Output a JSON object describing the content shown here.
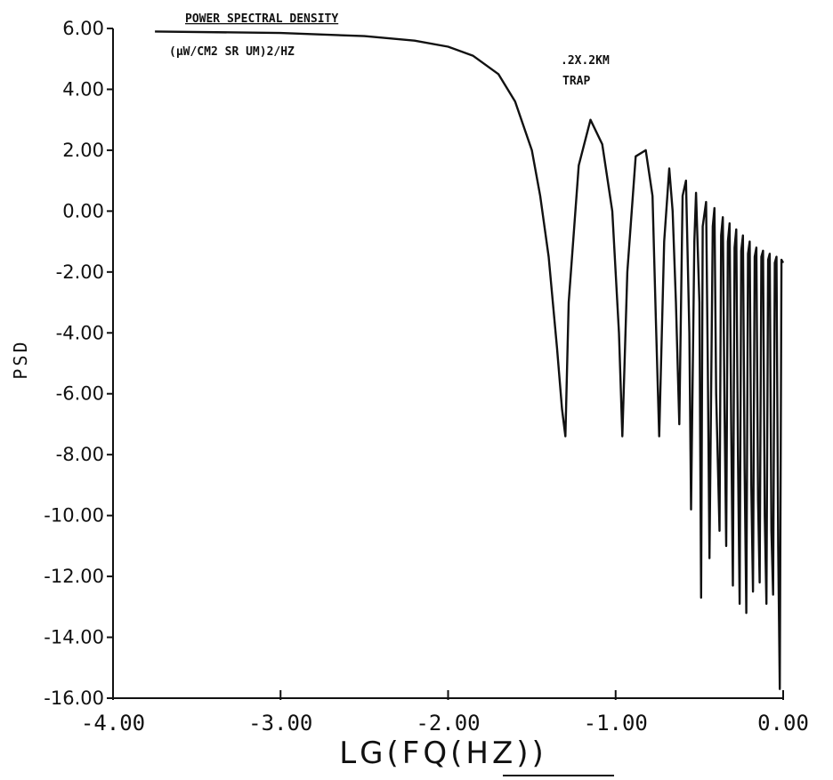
{
  "chart_data": {
    "type": "line",
    "title": "POWER SPECTRAL DENSITY",
    "subtitle": "(μW/CM2 SR UM)2/HZ",
    "annotation": ".2X.2KM TRAP",
    "xlabel": "LG(FQ(HZ))",
    "ylabel": "PSD",
    "xlim": [
      -4.0,
      0.0
    ],
    "ylim": [
      -16.0,
      6.0
    ],
    "x_ticks": [
      -4.0,
      -3.0,
      -2.0,
      -1.0,
      0.0
    ],
    "x_tick_labels": [
      "-4.00",
      "-3.00",
      "-2.00",
      "-1.00",
      "0.00"
    ],
    "y_ticks": [
      6.0,
      4.0,
      2.0,
      0.0,
      -2.0,
      -4.0,
      -6.0,
      -8.0,
      -10.0,
      -12.0,
      -14.0,
      -16.0
    ],
    "y_tick_labels": [
      "6.00",
      "4.00",
      "2.00",
      "0.00",
      "-2.00",
      "-4.00",
      "-6.00",
      "-8.00",
      "-10.00",
      "-12.00",
      "-14.00",
      "-16.00"
    ],
    "grid": false,
    "series": [
      {
        "x": [
          -3.75,
          -3.0,
          -2.5,
          -2.2,
          -2.0,
          -1.85,
          -1.7,
          -1.6,
          -1.5,
          -1.45,
          -1.4,
          -1.35,
          -1.32,
          -1.3,
          -1.28,
          -1.22,
          -1.15,
          -1.08,
          -1.02,
          -0.98,
          -0.96,
          -0.93,
          -0.88,
          -0.82,
          -0.78,
          -0.76,
          -0.74,
          -0.71,
          -0.68,
          -0.66,
          -0.64,
          -0.62,
          -0.6,
          -0.58,
          -0.56,
          -0.55,
          -0.53,
          -0.52,
          -0.5,
          -0.49,
          -0.48,
          -0.46,
          -0.45,
          -0.44,
          -0.42,
          -0.41,
          -0.4,
          -0.38,
          -0.37,
          -0.36,
          -0.35,
          -0.34,
          -0.33,
          -0.32,
          -0.31,
          -0.3,
          -0.29,
          -0.28,
          -0.27,
          -0.26,
          -0.25,
          -0.24,
          -0.23,
          -0.22,
          -0.21,
          -0.2,
          -0.19,
          -0.18,
          -0.17,
          -0.16,
          -0.15,
          -0.14,
          -0.13,
          -0.12,
          -0.11,
          -0.1,
          -0.09,
          -0.08,
          -0.07,
          -0.06,
          -0.05,
          -0.04,
          -0.03,
          -0.02,
          -0.01,
          0.0
        ],
        "y": [
          5.9,
          5.85,
          5.75,
          5.6,
          5.4,
          5.1,
          4.5,
          3.6,
          2.0,
          0.5,
          -1.5,
          -4.5,
          -6.5,
          -7.4,
          -3.0,
          1.5,
          3.0,
          2.2,
          0.0,
          -4.0,
          -7.4,
          -2.0,
          1.8,
          2.0,
          0.5,
          -3.5,
          -7.4,
          -1.0,
          1.4,
          0.0,
          -3.0,
          -7.0,
          0.5,
          1.0,
          -4.0,
          -9.8,
          -1.0,
          0.6,
          -3.0,
          -12.7,
          -0.5,
          0.3,
          -5.0,
          -11.4,
          -0.5,
          0.1,
          -6.0,
          -10.5,
          -0.8,
          -0.2,
          -6.5,
          -11.0,
          -1.0,
          -0.4,
          -7.0,
          -12.3,
          -1.2,
          -0.6,
          -8.0,
          -12.9,
          -1.3,
          -0.8,
          -8.5,
          -13.2,
          -1.4,
          -1.0,
          -9.0,
          -12.5,
          -1.5,
          -1.2,
          -9.5,
          -12.2,
          -1.5,
          -1.3,
          -10.0,
          -12.9,
          -1.6,
          -1.4,
          -10.5,
          -12.6,
          -1.7,
          -1.5,
          -11.0,
          -15.7,
          -1.6,
          -1.7
        ]
      }
    ]
  }
}
